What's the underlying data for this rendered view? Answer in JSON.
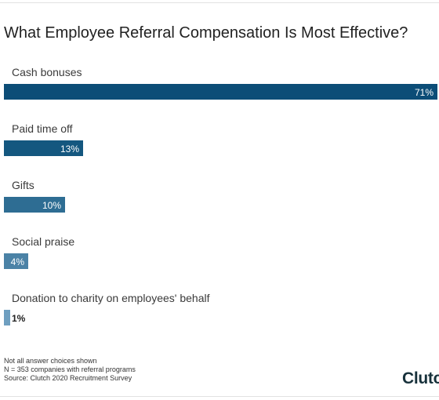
{
  "title": "What Employee Referral Compensation Is Most Effective?",
  "chart_data": {
    "type": "bar",
    "orientation": "horizontal",
    "categories": [
      "Cash bonuses",
      "Paid time off",
      "Gifts",
      "Social praise",
      "Donation to charity on employees' behalf"
    ],
    "values": [
      71,
      13,
      10,
      4,
      1
    ],
    "value_labels": [
      "71%",
      "13%",
      "10%",
      "4%",
      "1%"
    ],
    "unit": "%",
    "xlim": [
      0,
      71
    ],
    "grid": false,
    "legend": "none",
    "colors": [
      "#0c4d77",
      "#14577f",
      "#2e6d93",
      "#4b82a6",
      "#6f9fc0"
    ]
  },
  "footnotes": [
    "Not all answer choices shown",
    "N = 353 companies with referral programs",
    "Source: Clutch 2020 Recruitment Survey"
  ],
  "logo": "Clutch"
}
